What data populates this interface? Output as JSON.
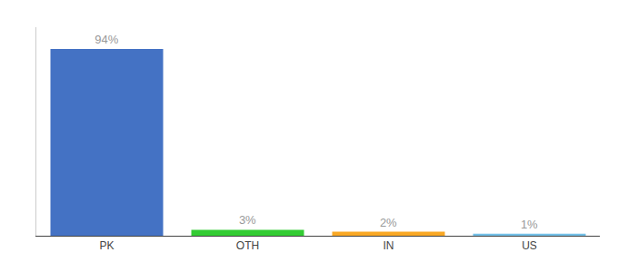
{
  "chart_data": {
    "type": "bar",
    "categories": [
      "PK",
      "OTH",
      "IN",
      "US"
    ],
    "values": [
      94,
      3,
      2,
      1
    ],
    "value_labels": [
      "94%",
      "3%",
      "2%",
      "1%"
    ],
    "colors": [
      "#4472c4",
      "#33cc33",
      "#f9a825",
      "#74c0e8"
    ],
    "ylim": [
      0,
      105
    ],
    "data_labels": true,
    "tick_labels": "x",
    "grid": false
  }
}
